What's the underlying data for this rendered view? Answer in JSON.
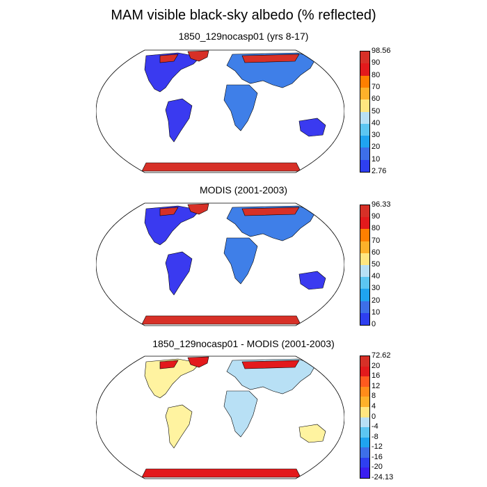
{
  "title": "MAM visible black-sky albedo (% reflected)",
  "panels": [
    {
      "id": "model",
      "title": "1850_129nocasp01 (yrs 8-17)",
      "colorbar": {
        "labels": [
          "98.56",
          "90",
          "80",
          "70",
          "60",
          "50",
          "40",
          "30",
          "20",
          "10",
          "2.76"
        ],
        "colors": [
          "#d73027",
          "#e31a1c",
          "#ff7f00",
          "#fdb12a",
          "#ffe680",
          "#b8e0f5",
          "#5cc6f2",
          "#1fa4f0",
          "#3d6fe8",
          "#2e3ff0"
        ],
        "fill": {
          "oceans": "#ffffff",
          "land_low": "#3a3af0",
          "land_mid": "#3f7fe8",
          "snow": "#d73027"
        }
      }
    },
    {
      "id": "obs",
      "title": "MODIS (2001-2003)",
      "colorbar": {
        "labels": [
          "96.33",
          "90",
          "80",
          "70",
          "60",
          "50",
          "40",
          "30",
          "20",
          "10",
          "0"
        ],
        "colors": [
          "#d73027",
          "#e31a1c",
          "#ff7f00",
          "#fdb12a",
          "#ffe680",
          "#b8e0f5",
          "#5cc6f2",
          "#1fa4f0",
          "#3d6fe8",
          "#2e3ff0"
        ],
        "fill": {
          "oceans": "#ffffff",
          "land_low": "#3a3af0",
          "land_mid": "#3f7fe8",
          "snow": "#d73027"
        }
      }
    },
    {
      "id": "diff",
      "title": "1850_129nocasp01 - MODIS (2001-2003)",
      "colorbar": {
        "labels": [
          "72.62",
          "20",
          "16",
          "12",
          "8",
          "4",
          "0",
          "-4",
          "-8",
          "-12",
          "-16",
          "-20",
          "-24.13"
        ],
        "colors": [
          "#d73027",
          "#e31a1c",
          "#ff5a1f",
          "#ff8c1a",
          "#fdb12a",
          "#ffe680",
          "#b8e0f5",
          "#5cc6f2",
          "#1fa4f0",
          "#3d6fe8",
          "#2e3ff0",
          "#3a1ef0"
        ],
        "fill": {
          "oceans": "#ffffff",
          "land_low": "#fff3a0",
          "land_mid": "#b8e0f5",
          "snow": "#e31a1c"
        }
      }
    }
  ]
}
